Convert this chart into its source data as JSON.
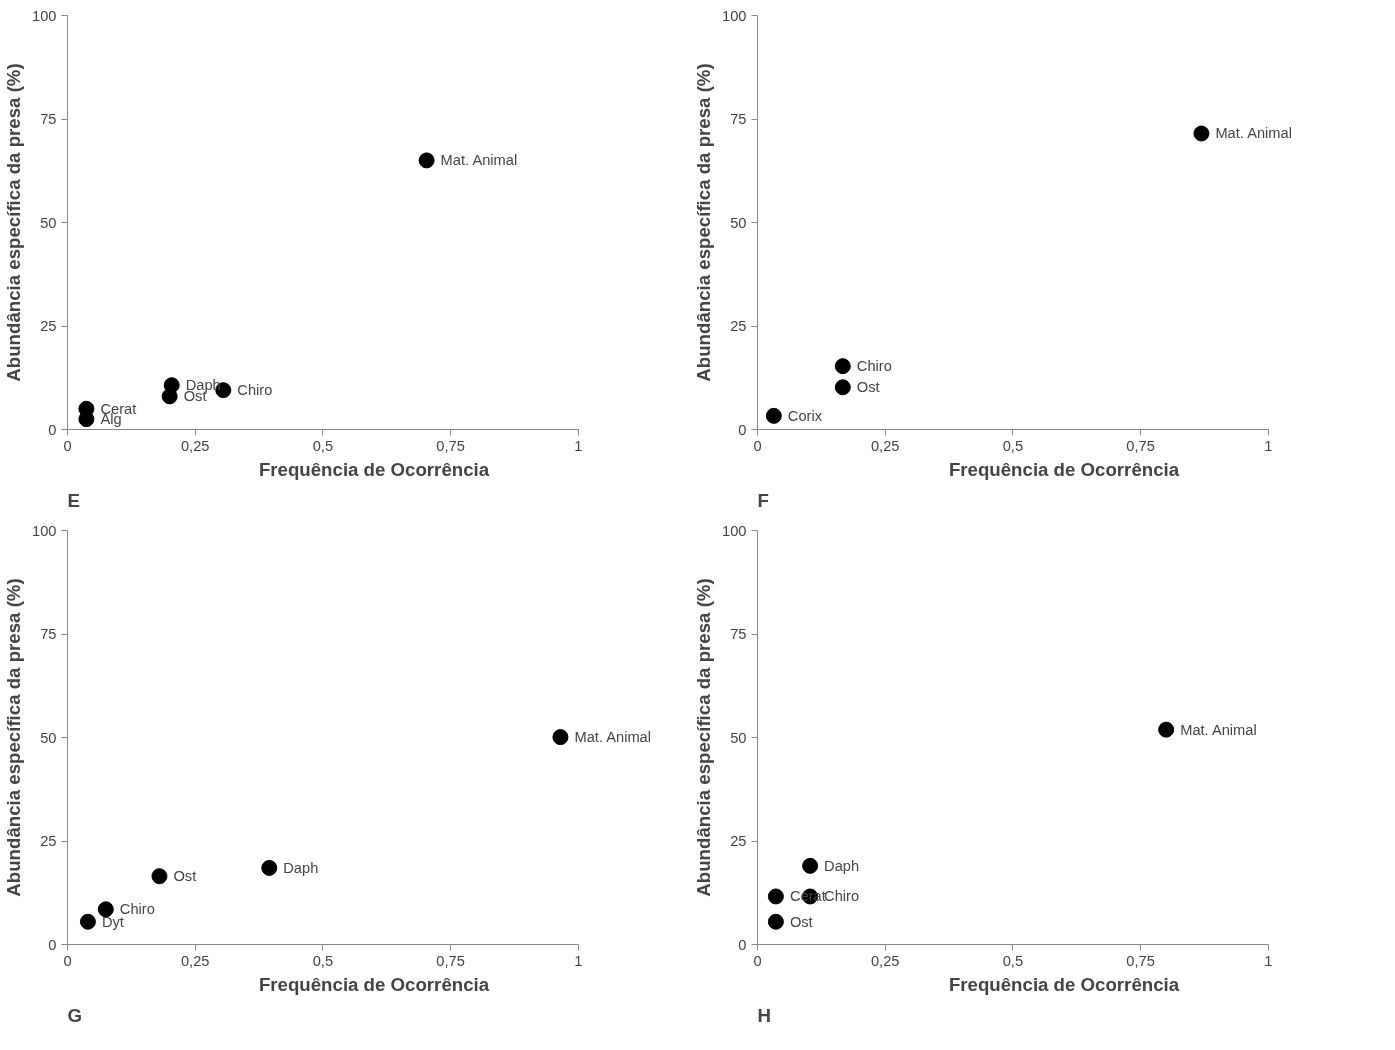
{
  "chart_data": [
    {
      "type": "scatter",
      "xlabel": "Frequência de Ocorrência",
      "ylabel": "Abundância específica da presa (%)",
      "color": "#000000",
      "marker": "circle",
      "grid": false,
      "legend": false,
      "x": [
        0.703,
        0.204,
        0.2,
        0.305,
        0.037,
        0.037
      ],
      "values": [
        65,
        10.7,
        8,
        9.5,
        5,
        2.5
      ],
      "xlim": [
        0,
        1
      ],
      "xticks": [
        0,
        {
          "value": 0.25,
          "label": "0,25"
        },
        {
          "value": 0.5,
          "label": "0,5"
        },
        {
          "value": 0.75,
          "label": "0,75"
        },
        1
      ],
      "ylim": [
        0,
        100
      ],
      "yticks": [
        0,
        25,
        50,
        75,
        100
      ],
      "annotations": [
        "E",
        {
          "text": "Mat. Animal",
          "x": 0.703,
          "y": 65
        },
        {
          "text": "Daph",
          "x": 0.204,
          "y": 10.7
        },
        {
          "text": "Ost",
          "x": 0.2,
          "y": 8
        },
        {
          "text": "Chiro",
          "x": 0.305,
          "y": 9.5
        },
        {
          "text": "Cerat",
          "x": 0.037,
          "y": 5
        },
        {
          "text": "Alg",
          "x": 0.037,
          "y": 2.5
        }
      ]
    },
    {
      "type": "scatter",
      "xlabel": "Frequência de Ocorrência",
      "ylabel": "Abundância específica da presa (%)",
      "color": "#000000",
      "marker": "circle",
      "grid": false,
      "legend": false,
      "x": [
        0.869,
        0.167,
        0.167,
        0.032
      ],
      "values": [
        71.5,
        15.3,
        10.2,
        3.3
      ],
      "xlim": [
        0,
        1
      ],
      "xticks": [
        0,
        {
          "value": 0.25,
          "label": "0,25"
        },
        {
          "value": 0.5,
          "label": "0,5"
        },
        {
          "value": 0.75,
          "label": "0,75"
        },
        1
      ],
      "ylim": [
        0,
        100
      ],
      "yticks": [
        0,
        25,
        50,
        75,
        100
      ],
      "annotations": [
        "F",
        {
          "text": "Mat. Animal",
          "x": 0.869,
          "y": 71.5
        },
        {
          "text": "Chiro",
          "x": 0.167,
          "y": 15.3
        },
        {
          "text": "Ost",
          "x": 0.167,
          "y": 10.2
        },
        {
          "text": "Corix",
          "x": 0.032,
          "y": 3.3
        }
      ]
    },
    {
      "type": "scatter",
      "xlabel": "Frequência de Ocorrência",
      "ylabel": "Abundância específica da presa (%)",
      "color": "#000000",
      "marker": "circle",
      "grid": false,
      "legend": false,
      "x": [
        0.965,
        0.395,
        0.18,
        0.075,
        0.04
      ],
      "values": [
        50.1,
        18.5,
        16.5,
        8.5,
        5.5
      ],
      "xlim": [
        0,
        1
      ],
      "xticks": [
        0,
        {
          "value": 0.25,
          "label": "0,25"
        },
        {
          "value": 0.5,
          "label": "0,5"
        },
        {
          "value": 0.75,
          "label": "0,75"
        },
        1
      ],
      "ylim": [
        0,
        100
      ],
      "yticks": [
        0,
        25,
        50,
        75,
        100
      ],
      "annotations": [
        "G",
        {
          "text": "Mat. Animal",
          "x": 0.965,
          "y": 50.1
        },
        {
          "text": "Daph",
          "x": 0.395,
          "y": 18.5
        },
        {
          "text": "Ost",
          "x": 0.18,
          "y": 16.5
        },
        {
          "text": "Chiro",
          "x": 0.075,
          "y": 8.5
        },
        {
          "text": "Dyt",
          "x": 0.04,
          "y": 5.5
        }
      ]
    },
    {
      "type": "scatter",
      "xlabel": "Frequência de Ocorrência",
      "ylabel": "Abundância específica da presa (%)",
      "color": "#000000",
      "marker": "circle",
      "grid": false,
      "legend": false,
      "x": [
        0.8,
        0.103,
        0.103,
        0.036,
        0.036
      ],
      "values": [
        51.9,
        19,
        11.6,
        11.6,
        5.5
      ],
      "xlim": [
        0,
        1
      ],
      "xticks": [
        0,
        {
          "value": 0.25,
          "label": "0,25"
        },
        {
          "value": 0.5,
          "label": "0,5"
        },
        {
          "value": 0.75,
          "label": "0,75"
        },
        1
      ],
      "ylim": [
        0,
        100
      ],
      "yticks": [
        0,
        25,
        50,
        75,
        100
      ],
      "annotations": [
        "H",
        {
          "text": "Mat. Animal",
          "x": 0.8,
          "y": 51.9
        },
        {
          "text": "Daph",
          "x": 0.103,
          "y": 19
        },
        {
          "text": "Chiro",
          "x": 0.103,
          "y": 11.6
        },
        {
          "text": "Cerat",
          "x": 0.036,
          "y": 11.6
        },
        {
          "text": "Ost",
          "x": 0.036,
          "y": 5.5
        }
      ]
    }
  ]
}
